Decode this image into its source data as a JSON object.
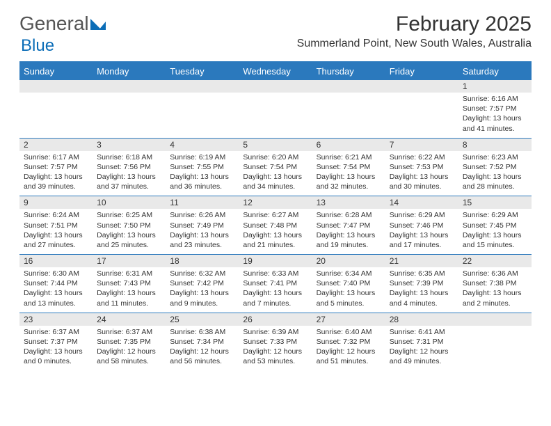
{
  "logo": {
    "word1": "General",
    "word2": "Blue"
  },
  "title": "February 2025",
  "location": "Summerland Point, New South Wales, Australia",
  "colors": {
    "header_bg": "#2b79bd",
    "header_text": "#ffffff",
    "row_border": "#2b79bd",
    "daynum_bg": "#e9e9e9",
    "text": "#333333",
    "logo_blue": "#0b6db7"
  },
  "typography": {
    "title_fontsize": 30,
    "location_fontsize": 16,
    "dayhead_fontsize": 13,
    "daynum_fontsize": 12,
    "body_fontsize": 10.5
  },
  "calendar": {
    "type": "table",
    "columns": [
      "Sunday",
      "Monday",
      "Tuesday",
      "Wednesday",
      "Thursday",
      "Friday",
      "Saturday"
    ],
    "weeks": [
      [
        null,
        null,
        null,
        null,
        null,
        null,
        {
          "n": "1",
          "sr": "Sunrise: 6:16 AM",
          "ss": "Sunset: 7:57 PM",
          "dl1": "Daylight: 13 hours",
          "dl2": "and 41 minutes."
        }
      ],
      [
        {
          "n": "2",
          "sr": "Sunrise: 6:17 AM",
          "ss": "Sunset: 7:57 PM",
          "dl1": "Daylight: 13 hours",
          "dl2": "and 39 minutes."
        },
        {
          "n": "3",
          "sr": "Sunrise: 6:18 AM",
          "ss": "Sunset: 7:56 PM",
          "dl1": "Daylight: 13 hours",
          "dl2": "and 37 minutes."
        },
        {
          "n": "4",
          "sr": "Sunrise: 6:19 AM",
          "ss": "Sunset: 7:55 PM",
          "dl1": "Daylight: 13 hours",
          "dl2": "and 36 minutes."
        },
        {
          "n": "5",
          "sr": "Sunrise: 6:20 AM",
          "ss": "Sunset: 7:54 PM",
          "dl1": "Daylight: 13 hours",
          "dl2": "and 34 minutes."
        },
        {
          "n": "6",
          "sr": "Sunrise: 6:21 AM",
          "ss": "Sunset: 7:54 PM",
          "dl1": "Daylight: 13 hours",
          "dl2": "and 32 minutes."
        },
        {
          "n": "7",
          "sr": "Sunrise: 6:22 AM",
          "ss": "Sunset: 7:53 PM",
          "dl1": "Daylight: 13 hours",
          "dl2": "and 30 minutes."
        },
        {
          "n": "8",
          "sr": "Sunrise: 6:23 AM",
          "ss": "Sunset: 7:52 PM",
          "dl1": "Daylight: 13 hours",
          "dl2": "and 28 minutes."
        }
      ],
      [
        {
          "n": "9",
          "sr": "Sunrise: 6:24 AM",
          "ss": "Sunset: 7:51 PM",
          "dl1": "Daylight: 13 hours",
          "dl2": "and 27 minutes."
        },
        {
          "n": "10",
          "sr": "Sunrise: 6:25 AM",
          "ss": "Sunset: 7:50 PM",
          "dl1": "Daylight: 13 hours",
          "dl2": "and 25 minutes."
        },
        {
          "n": "11",
          "sr": "Sunrise: 6:26 AM",
          "ss": "Sunset: 7:49 PM",
          "dl1": "Daylight: 13 hours",
          "dl2": "and 23 minutes."
        },
        {
          "n": "12",
          "sr": "Sunrise: 6:27 AM",
          "ss": "Sunset: 7:48 PM",
          "dl1": "Daylight: 13 hours",
          "dl2": "and 21 minutes."
        },
        {
          "n": "13",
          "sr": "Sunrise: 6:28 AM",
          "ss": "Sunset: 7:47 PM",
          "dl1": "Daylight: 13 hours",
          "dl2": "and 19 minutes."
        },
        {
          "n": "14",
          "sr": "Sunrise: 6:29 AM",
          "ss": "Sunset: 7:46 PM",
          "dl1": "Daylight: 13 hours",
          "dl2": "and 17 minutes."
        },
        {
          "n": "15",
          "sr": "Sunrise: 6:29 AM",
          "ss": "Sunset: 7:45 PM",
          "dl1": "Daylight: 13 hours",
          "dl2": "and 15 minutes."
        }
      ],
      [
        {
          "n": "16",
          "sr": "Sunrise: 6:30 AM",
          "ss": "Sunset: 7:44 PM",
          "dl1": "Daylight: 13 hours",
          "dl2": "and 13 minutes."
        },
        {
          "n": "17",
          "sr": "Sunrise: 6:31 AM",
          "ss": "Sunset: 7:43 PM",
          "dl1": "Daylight: 13 hours",
          "dl2": "and 11 minutes."
        },
        {
          "n": "18",
          "sr": "Sunrise: 6:32 AM",
          "ss": "Sunset: 7:42 PM",
          "dl1": "Daylight: 13 hours",
          "dl2": "and 9 minutes."
        },
        {
          "n": "19",
          "sr": "Sunrise: 6:33 AM",
          "ss": "Sunset: 7:41 PM",
          "dl1": "Daylight: 13 hours",
          "dl2": "and 7 minutes."
        },
        {
          "n": "20",
          "sr": "Sunrise: 6:34 AM",
          "ss": "Sunset: 7:40 PM",
          "dl1": "Daylight: 13 hours",
          "dl2": "and 5 minutes."
        },
        {
          "n": "21",
          "sr": "Sunrise: 6:35 AM",
          "ss": "Sunset: 7:39 PM",
          "dl1": "Daylight: 13 hours",
          "dl2": "and 4 minutes."
        },
        {
          "n": "22",
          "sr": "Sunrise: 6:36 AM",
          "ss": "Sunset: 7:38 PM",
          "dl1": "Daylight: 13 hours",
          "dl2": "and 2 minutes."
        }
      ],
      [
        {
          "n": "23",
          "sr": "Sunrise: 6:37 AM",
          "ss": "Sunset: 7:37 PM",
          "dl1": "Daylight: 13 hours",
          "dl2": "and 0 minutes."
        },
        {
          "n": "24",
          "sr": "Sunrise: 6:37 AM",
          "ss": "Sunset: 7:35 PM",
          "dl1": "Daylight: 12 hours",
          "dl2": "and 58 minutes."
        },
        {
          "n": "25",
          "sr": "Sunrise: 6:38 AM",
          "ss": "Sunset: 7:34 PM",
          "dl1": "Daylight: 12 hours",
          "dl2": "and 56 minutes."
        },
        {
          "n": "26",
          "sr": "Sunrise: 6:39 AM",
          "ss": "Sunset: 7:33 PM",
          "dl1": "Daylight: 12 hours",
          "dl2": "and 53 minutes."
        },
        {
          "n": "27",
          "sr": "Sunrise: 6:40 AM",
          "ss": "Sunset: 7:32 PM",
          "dl1": "Daylight: 12 hours",
          "dl2": "and 51 minutes."
        },
        {
          "n": "28",
          "sr": "Sunrise: 6:41 AM",
          "ss": "Sunset: 7:31 PM",
          "dl1": "Daylight: 12 hours",
          "dl2": "and 49 minutes."
        },
        null
      ]
    ]
  }
}
